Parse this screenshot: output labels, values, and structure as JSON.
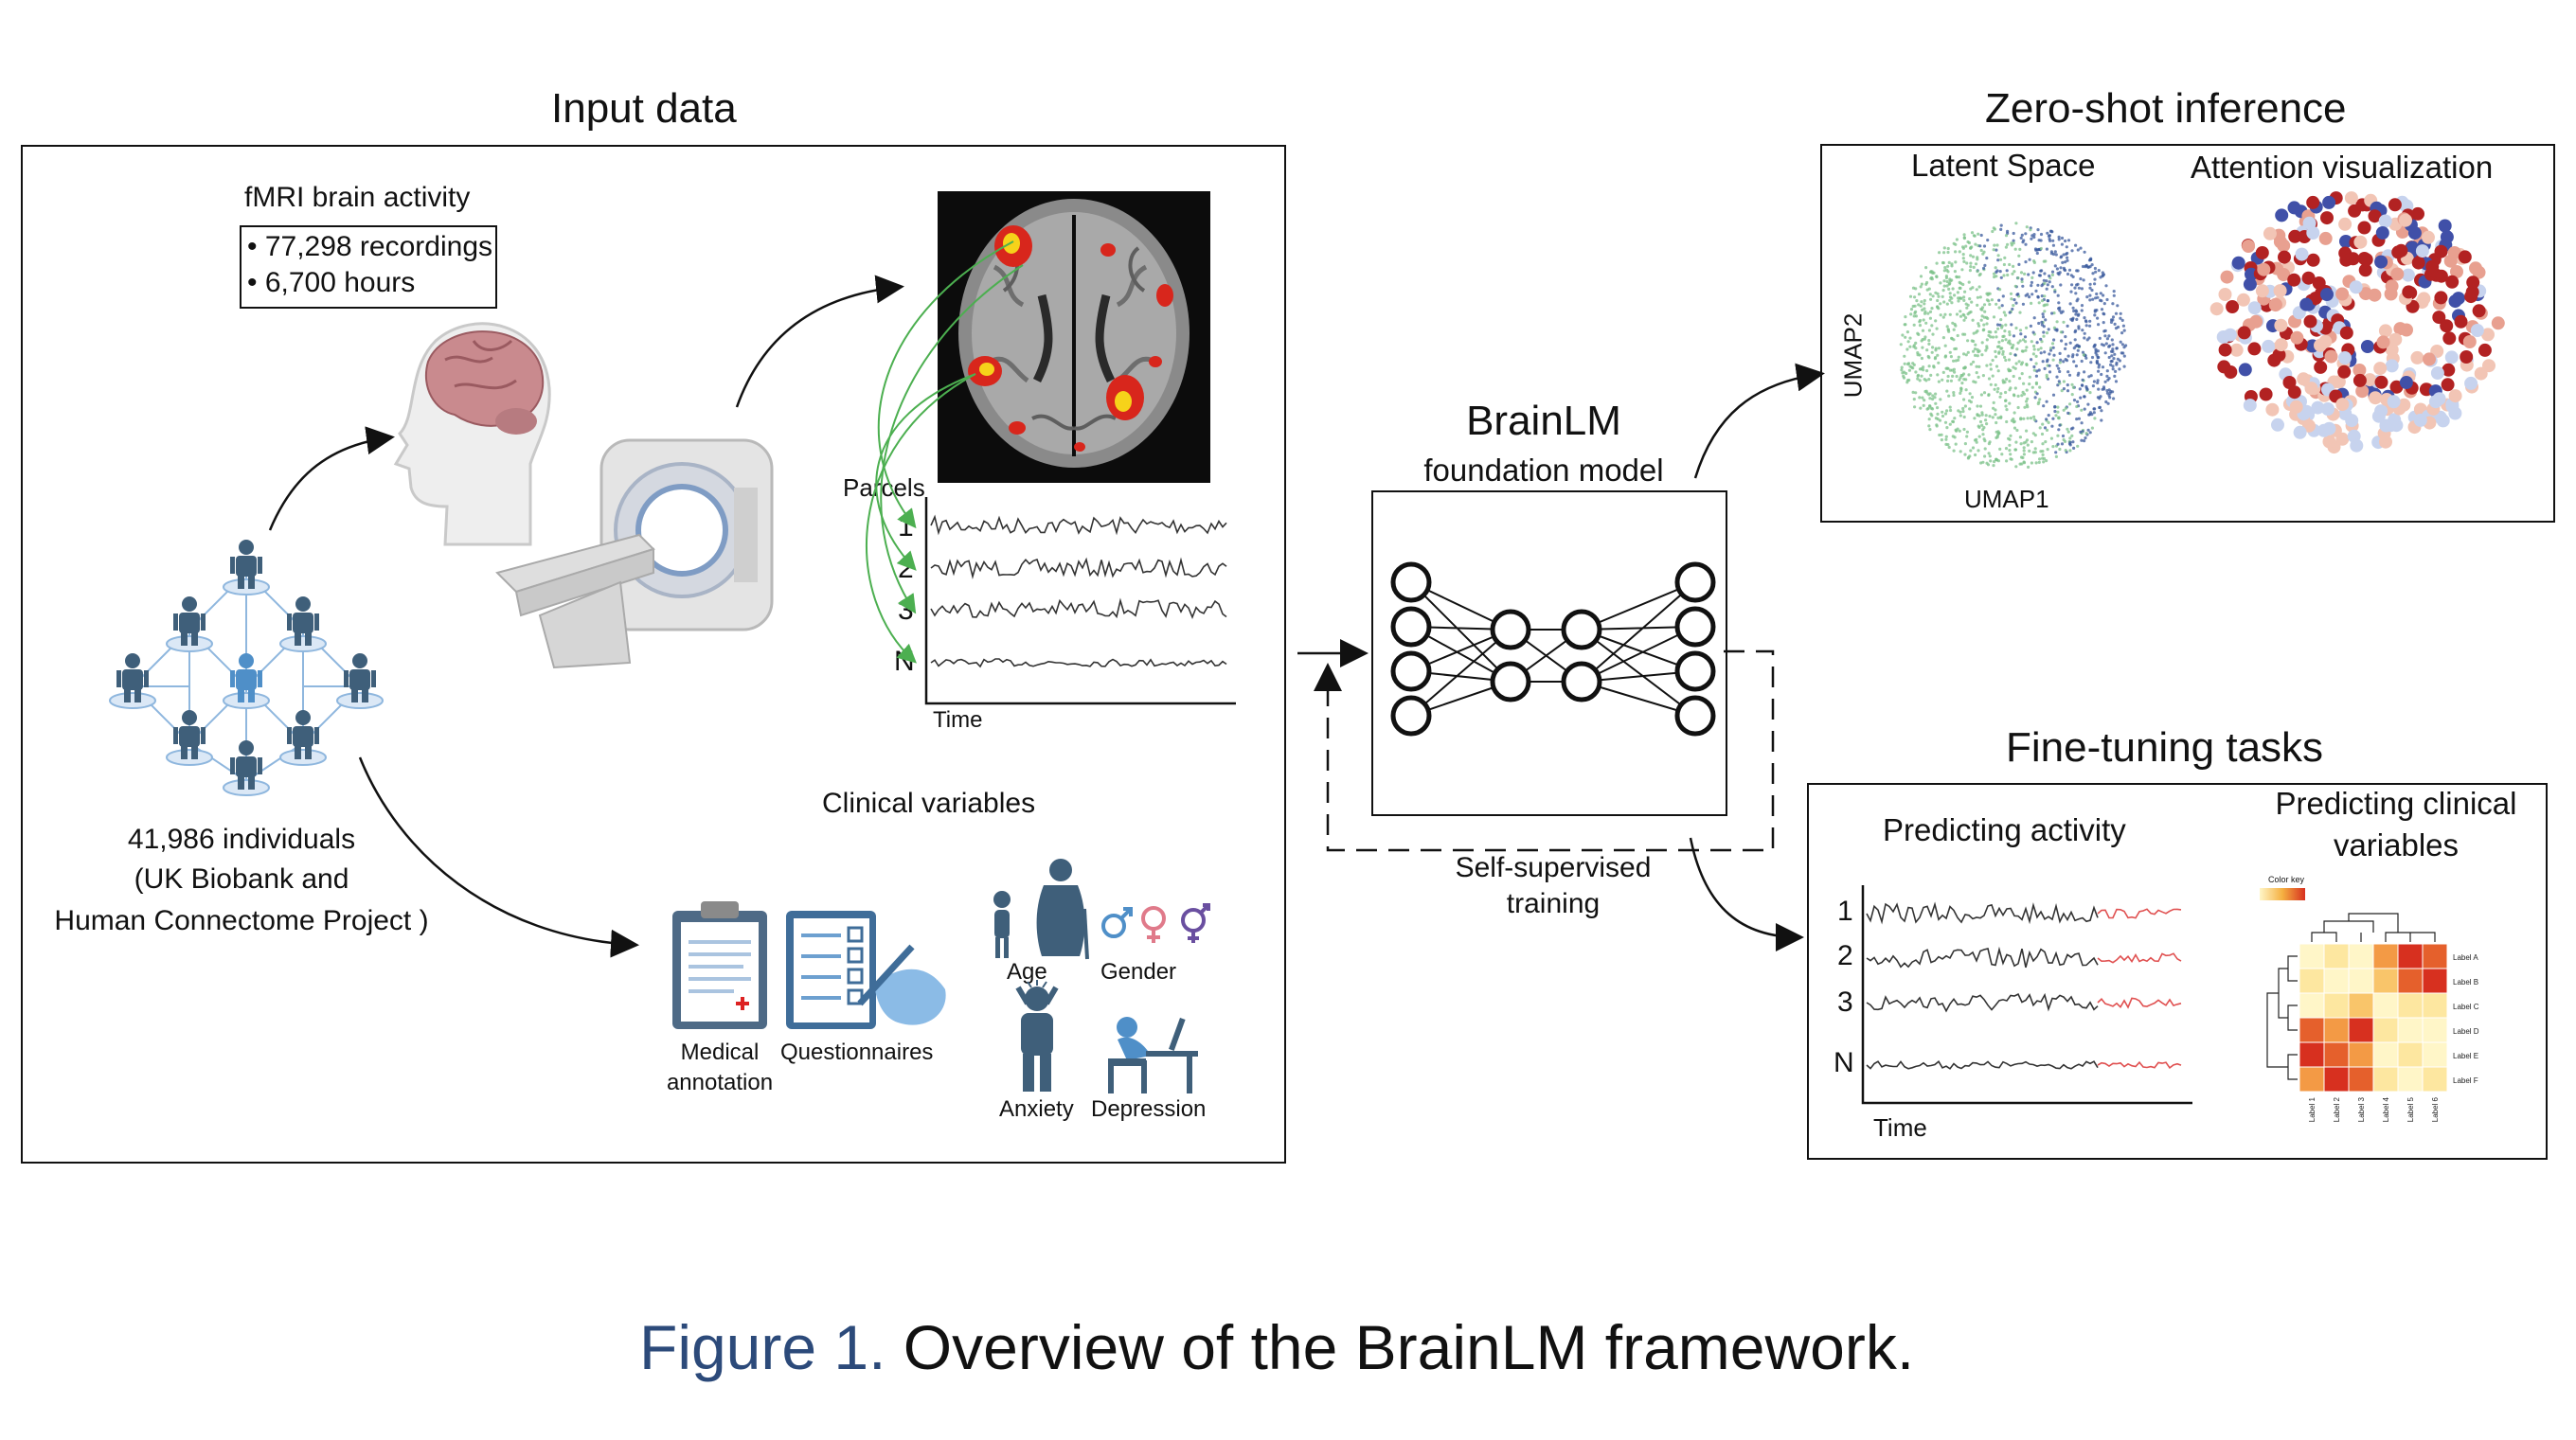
{
  "input_data": {
    "title": "Input data",
    "fmri": {
      "title": "fMRI brain activity",
      "stats": [
        "• 77,298 recordings",
        "• 6,700 hours"
      ]
    },
    "parcels_label": "Parcels",
    "parcel_rows": [
      "1",
      "2",
      "3",
      "N"
    ],
    "time_label": "Time",
    "individuals": {
      "count_label": "41,986 individuals",
      "source_line1": "(UK Biobank and",
      "source_line2": "Human Connectome Project )"
    },
    "clinical": {
      "title": "Clinical variables",
      "medical_line1": "Medical",
      "medical_line2": "annotation",
      "questionnaires": "Questionnaires",
      "age": "Age",
      "gender": "Gender",
      "anxiety": "Anxiety",
      "depression": "Depression"
    }
  },
  "model": {
    "name": "BrainLM",
    "subtitle": "foundation model",
    "training_line1": "Self-supervised",
    "training_line2": "training"
  },
  "zero_shot": {
    "title": "Zero-shot inference",
    "latent_title": "Latent Space",
    "attention_title": "Attention visualization",
    "umap_x": "UMAP1",
    "umap_y": "UMAP2"
  },
  "fine_tuning": {
    "title": "Fine-tuning tasks",
    "activity_title": "Predicting activity",
    "activity_rows": [
      "1",
      "2",
      "3",
      "N"
    ],
    "time_label": "Time",
    "clinical_title_line1": "Predicting clinical",
    "clinical_title_line2": "variables",
    "color_key": "Color key",
    "heatmap_row_labels": [
      "Label A",
      "Label B",
      "Label C",
      "Label D",
      "Label E",
      "Label F"
    ],
    "heatmap_col_labels": [
      "Label 1",
      "Label 2",
      "Label 3",
      "Label 4",
      "Label 5",
      "Label 6"
    ]
  },
  "caption": {
    "lead": "Figure 1.",
    "text": " Overview of the BrainLM framework."
  },
  "colors": {
    "person": "#3f5f7a",
    "person_highlight": "#4f8fc8",
    "brain_red": "#d8261c",
    "brain_yellow": "#f6d21a",
    "umap_green": "#7cc28a",
    "umap_blue": "#3a5a9c",
    "attn_red": "#b22222",
    "attn_blue": "#4050a8",
    "attn_light": "#c7d3ee",
    "heat_dark": "#d7301f",
    "heat_light": "#fff6c8",
    "caption_blue": "#2c4a7a",
    "predict_red": "#e05050"
  }
}
